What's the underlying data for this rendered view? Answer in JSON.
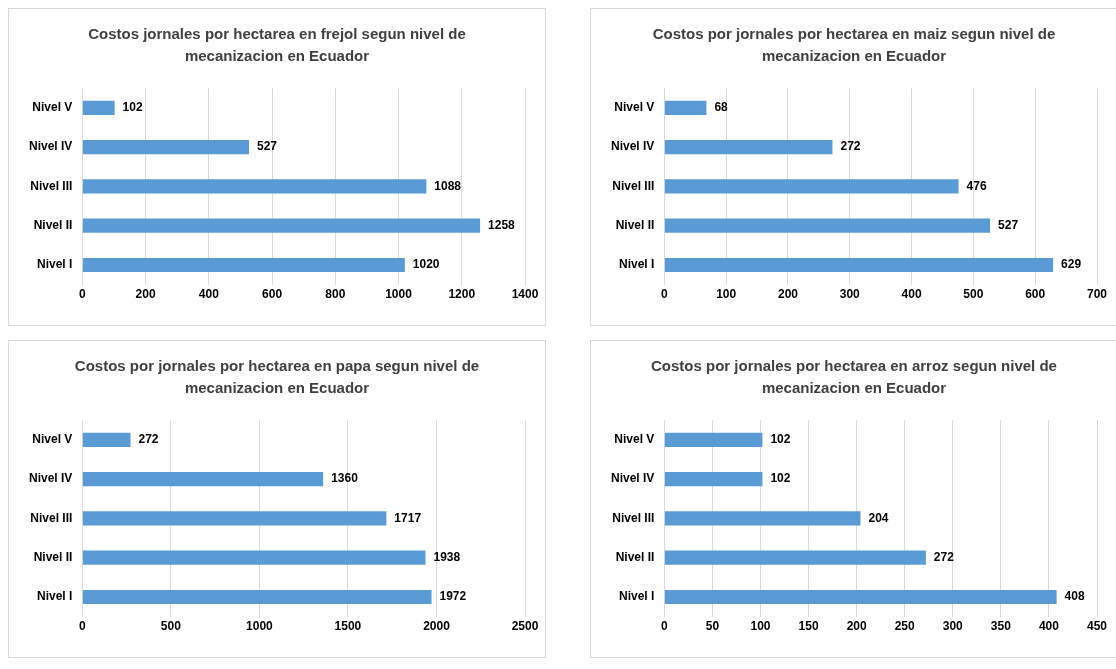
{
  "chart_data": [
    {
      "type": "bar",
      "orientation": "horizontal",
      "title": "Costos jornales por hectarea en frejol segun nivel de mecanizacion  en Ecuador",
      "categories": [
        "Nivel V",
        "Nivel IV",
        "Nivel III",
        "Nivel II",
        "Nivel I"
      ],
      "values": [
        102,
        527,
        1088,
        1258,
        1020
      ],
      "color": "#5b9bd5",
      "xlim": [
        0,
        1400
      ],
      "xticks": [
        0,
        200,
        400,
        600,
        800,
        1000,
        1200,
        1400
      ],
      "grid": "x",
      "data_labels": true
    },
    {
      "type": "bar",
      "orientation": "horizontal",
      "title": "Costos por jornales por hectarea en maiz segun nivel de mecanizacion  en Ecuador",
      "categories": [
        "Nivel V",
        "Nivel IV",
        "Nivel III",
        "Nivel II",
        "Nivel I"
      ],
      "values": [
        68,
        272,
        476,
        527,
        629
      ],
      "color": "#5b9bd5",
      "xlim": [
        0,
        700
      ],
      "xticks": [
        0,
        100,
        200,
        300,
        400,
        500,
        600,
        700
      ],
      "grid": "x",
      "data_labels": true
    },
    {
      "type": "bar",
      "orientation": "horizontal",
      "title": "Costos por jornales por hectarea en papa segun nivel de mecanizacion  en Ecuador",
      "categories": [
        "Nivel V",
        "Nivel IV",
        "Nivel III",
        "Nivel II",
        "Nivel I"
      ],
      "values": [
        272,
        1360,
        1717,
        1938,
        1972
      ],
      "color": "#5b9bd5",
      "xlim": [
        0,
        2500
      ],
      "xticks": [
        0,
        500,
        1000,
        1500,
        2000,
        2500
      ],
      "grid": "x",
      "data_labels": true
    },
    {
      "type": "bar",
      "orientation": "horizontal",
      "title": "Costos por jornales por hectarea en arroz segun nivel de mecanizacion  en Ecuador",
      "categories": [
        "Nivel V",
        "Nivel IV",
        "Nivel III",
        "Nivel II",
        "Nivel I"
      ],
      "values": [
        102,
        102,
        204,
        272,
        408
      ],
      "color": "#5b9bd5",
      "xlim": [
        0,
        450
      ],
      "xticks": [
        0,
        50,
        100,
        150,
        200,
        250,
        300,
        350,
        400,
        450
      ],
      "grid": "x",
      "data_labels": true
    }
  ]
}
